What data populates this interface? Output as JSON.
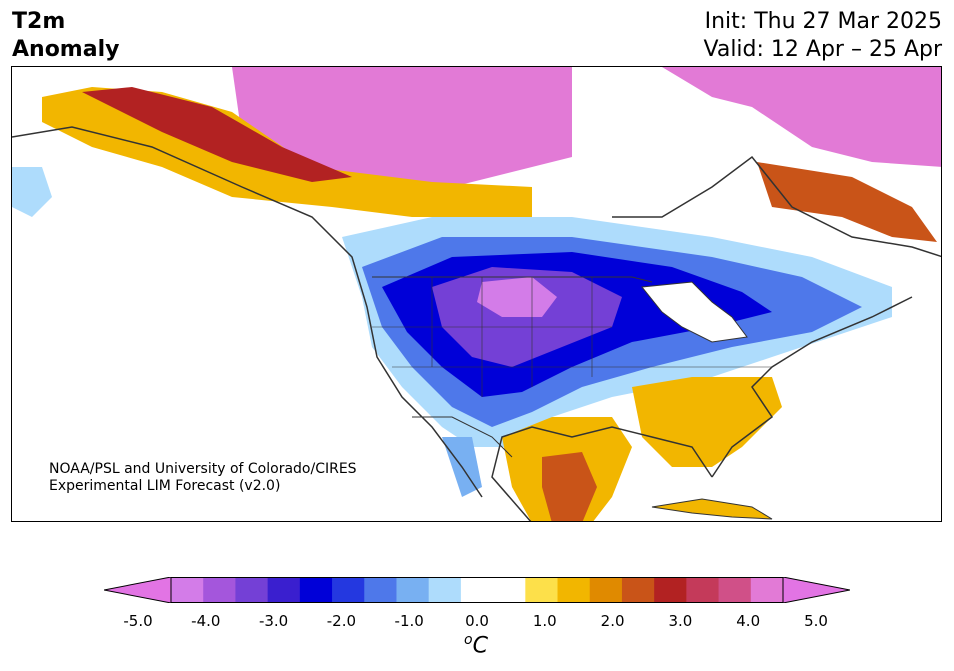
{
  "header": {
    "variable_line1": "T2m",
    "variable_line2": "Anomaly",
    "init": "Init: Thu 27 Mar 2025",
    "valid": "Valid: 12 Apr – 25 Apr"
  },
  "credit": {
    "line1": "NOAA/PSL and University of Colorado/CIRES",
    "line2": "Experimental LIM Forecast (v2.0)"
  },
  "colorbar": {
    "min": -5.0,
    "max": 5.0,
    "step": 0.5,
    "ticks": [
      "-5.0",
      "-4.0",
      "-3.0",
      "-2.0",
      "-1.0",
      "0.0",
      "1.0",
      "2.0",
      "3.0",
      "4.0",
      "5.0"
    ],
    "unit_symbol": "o",
    "unit_letter": "C",
    "cold_colors": [
      "#d37ce8",
      "#a456dc",
      "#7440d6",
      "#3a1fcf",
      "#0000d8",
      "#2438e0",
      "#4e78ea",
      "#78b0f2",
      "#aedcfc"
    ],
    "neutral_color": "#ffffff",
    "warm_colors": [
      "#fde04a",
      "#f2b600",
      "#e08a00",
      "#c95418",
      "#b22222",
      "#c43a5a",
      "#d05088",
      "#e27ad6"
    ],
    "under_color": "#e274e4",
    "over_color": "#e274e4"
  }
}
